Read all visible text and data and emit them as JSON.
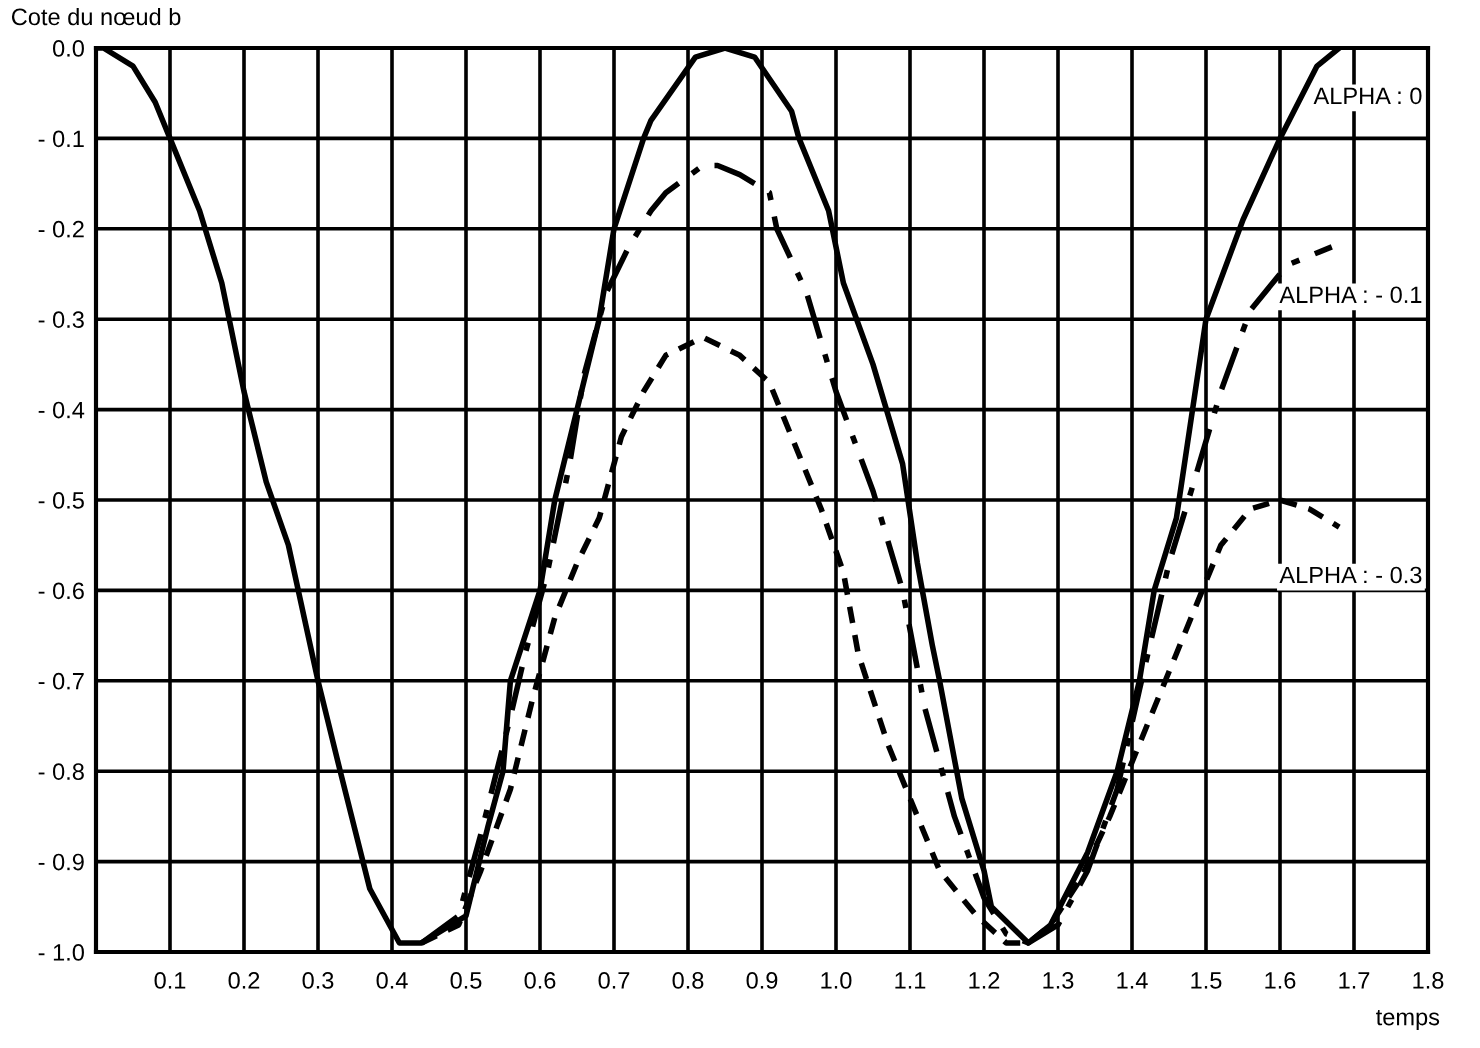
{
  "chart_data": {
    "type": "line",
    "xlabel": "temps",
    "ylabel": "Cote du nœud b",
    "xlim": [
      0,
      1.8
    ],
    "ylim": [
      -1.0,
      0
    ],
    "xticks": [
      0.1,
      0.2,
      0.3,
      0.4,
      0.5,
      0.6,
      0.7,
      0.8,
      0.9,
      {
        "value": 1,
        "label": "1.0"
      },
      1.1,
      1.2,
      1.3,
      1.4,
      1.5,
      1.6,
      1.7,
      1.8
    ],
    "yticks": [
      {
        "value": 0,
        "label": "0.0"
      },
      {
        "value": -0.1,
        "label": "- 0.1"
      },
      {
        "value": -0.2,
        "label": "- 0.2"
      },
      {
        "value": -0.3,
        "label": "- 0.3"
      },
      {
        "value": -0.4,
        "label": "- 0.4"
      },
      {
        "value": -0.5,
        "label": "- 0.5"
      },
      {
        "value": -0.6,
        "label": "- 0.6"
      },
      {
        "value": -0.7,
        "label": "- 0.7"
      },
      {
        "value": -0.8,
        "label": "- 0.8"
      },
      {
        "value": -0.9,
        "label": "- 0.9"
      },
      {
        "value": -1,
        "label": "- 1.0"
      }
    ],
    "grid": true,
    "series": [
      {
        "name": "ALPHA : 0",
        "color": "#000000",
        "line_style": "solid",
        "x": [
          0,
          0.01,
          0.05,
          0.08,
          0.1,
          0.14,
          0.17,
          0.2,
          0.23,
          0.26,
          0.3,
          0.33,
          0.37,
          0.41,
          0.44,
          0.48,
          0.5,
          0.53,
          0.55,
          0.56,
          0.6,
          0.62,
          0.65,
          0.68,
          0.7,
          0.74,
          0.75,
          0.81,
          0.85,
          0.89,
          0.94,
          0.95,
          0.99,
          1.01,
          1.05,
          1.09,
          1.11,
          1.13,
          1.14,
          1.17,
          1.2,
          1.21,
          1.26,
          1.29,
          1.34,
          1.38,
          1.41,
          1.43,
          1.46,
          1.5,
          1.55,
          1.6,
          1.65,
          1.68
        ],
        "values": [
          0,
          0,
          -0.02,
          -0.06,
          -0.1,
          -0.18,
          -0.26,
          -0.38,
          -0.48,
          -0.55,
          -0.7,
          -0.8,
          -0.93,
          -0.99,
          -0.99,
          -0.97,
          -0.96,
          -0.86,
          -0.8,
          -0.7,
          -0.6,
          -0.5,
          -0.4,
          -0.3,
          -0.2,
          -0.1,
          -0.08,
          -0.01,
          0,
          -0.01,
          -0.07,
          -0.1,
          -0.18,
          -0.26,
          -0.35,
          -0.46,
          -0.57,
          -0.66,
          -0.7,
          -0.83,
          -0.91,
          -0.95,
          -0.99,
          -0.97,
          -0.89,
          -0.8,
          -0.7,
          -0.6,
          -0.52,
          -0.3,
          -0.19,
          -0.1,
          -0.02,
          0
        ]
      },
      {
        "name": "ALPHA : - 0.1",
        "color": "#000000",
        "line_style": "dashdot",
        "x": [
          0.44,
          0.49,
          0.52,
          0.56,
          0.58,
          0.61,
          0.64,
          0.66,
          0.69,
          0.72,
          0.75,
          0.77,
          0.82,
          0.84,
          0.87,
          0.91,
          0.92,
          0.96,
          1.0,
          1.05,
          1.09,
          1.12,
          1.16,
          1.2,
          1.23,
          1.26,
          1.3,
          1.34,
          1.38,
          1.41,
          1.45,
          1.48,
          1.52,
          1.56,
          1.59,
          1.61,
          1.67
        ],
        "values": [
          -0.99,
          -0.96,
          -0.87,
          -0.74,
          -0.67,
          -0.58,
          -0.46,
          -0.36,
          -0.27,
          -0.22,
          -0.18,
          -0.16,
          -0.13,
          -0.13,
          -0.14,
          -0.16,
          -0.2,
          -0.27,
          -0.38,
          -0.49,
          -0.6,
          -0.73,
          -0.85,
          -0.94,
          -0.98,
          -0.99,
          -0.97,
          -0.91,
          -0.82,
          -0.71,
          -0.57,
          -0.49,
          -0.38,
          -0.29,
          -0.26,
          -0.24,
          -0.22
        ]
      },
      {
        "name": "ALPHA : - 0.3",
        "color": "#000000",
        "line_style": "dashed",
        "x": [
          0.44,
          0.49,
          0.52,
          0.56,
          0.59,
          0.62,
          0.65,
          0.68,
          0.71,
          0.74,
          0.77,
          0.82,
          0.87,
          0.91,
          0.94,
          0.98,
          1.01,
          1.03,
          1.07,
          1.11,
          1.14,
          1.19,
          1.23,
          1.26,
          1.29,
          1.33,
          1.37,
          1.41,
          1.46,
          1.5,
          1.52,
          1.56,
          1.6,
          1.64,
          1.68
        ],
        "values": [
          -0.99,
          -0.97,
          -0.91,
          -0.82,
          -0.72,
          -0.63,
          -0.57,
          -0.52,
          -0.43,
          -0.38,
          -0.34,
          -0.32,
          -0.34,
          -0.37,
          -0.43,
          -0.51,
          -0.58,
          -0.67,
          -0.77,
          -0.85,
          -0.91,
          -0.96,
          -0.99,
          -0.99,
          -0.97,
          -0.92,
          -0.85,
          -0.77,
          -0.67,
          -0.59,
          -0.55,
          -0.51,
          -0.5,
          -0.51,
          -0.53
        ]
      }
    ]
  }
}
